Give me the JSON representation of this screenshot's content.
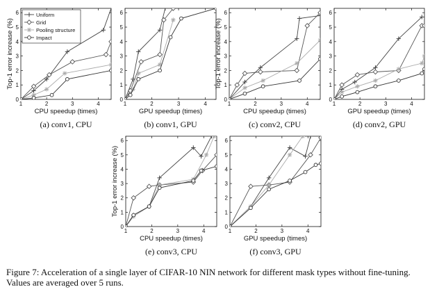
{
  "legend": {
    "entries": [
      {
        "name": "Uniform",
        "color": "#444444",
        "marker": "plus"
      },
      {
        "name": "Grid",
        "color": "#555555",
        "marker": "diamond"
      },
      {
        "name": "Pooling structure",
        "color": "#aaaaaa",
        "marker": "star"
      },
      {
        "name": "Impact",
        "color": "#333333",
        "marker": "circle"
      }
    ]
  },
  "figure_caption": "Figure 7: Acceleration of a single layer of CIFAR-10 NIN network for different mask types without fine-tuning. Values are averaged over 5 runs.",
  "chart_data": [
    {
      "type": "line",
      "caption": "(a) conv1, CPU",
      "xlabel": "CPU speedup (times)",
      "ylabel": "Top-1 error increase (%)",
      "xlim": [
        1,
        4.5
      ],
      "ylim": [
        0,
        6.3
      ],
      "xticks": [
        "1",
        "2",
        "3",
        "4"
      ],
      "yticks": [
        "0",
        "1",
        "2",
        "3",
        "4",
        "5",
        "6"
      ],
      "legend": true,
      "legend_position": "top-left",
      "series": [
        {
          "name": "Uniform",
          "x": [
            1.0,
            1.5,
            2.0,
            2.8,
            4.2,
            4.5
          ],
          "y": [
            0.0,
            0.6,
            1.4,
            3.3,
            4.8,
            6.3
          ]
        },
        {
          "name": "Grid",
          "x": [
            1.0,
            1.5,
            2.1,
            3.0,
            4.3,
            4.5
          ],
          "y": [
            0.0,
            0.9,
            1.7,
            2.6,
            3.1,
            4.0
          ]
        },
        {
          "name": "Pooling structure",
          "x": [
            1.0,
            1.5,
            2.0,
            2.7,
            4.5
          ],
          "y": [
            0.0,
            0.3,
            0.7,
            1.8,
            2.4
          ]
        },
        {
          "name": "Impact",
          "x": [
            1.0,
            1.5,
            2.2,
            2.8,
            4.5
          ],
          "y": [
            0.0,
            0.1,
            0.3,
            1.4,
            2.0
          ]
        }
      ]
    },
    {
      "type": "line",
      "caption": "(b) conv1, GPU",
      "xlabel": "GPU speedup (times)",
      "ylabel": "",
      "xlim": [
        1,
        4.4
      ],
      "ylim": [
        0,
        6.3
      ],
      "xticks": [
        "1",
        "2",
        "3",
        "4"
      ],
      "yticks": [
        "0",
        "1",
        "2",
        "3",
        "4",
        "5",
        "6"
      ],
      "legend": false,
      "series": [
        {
          "name": "Uniform",
          "x": [
            1.0,
            1.3,
            1.5,
            2.3,
            2.5,
            2.8
          ],
          "y": [
            0.0,
            1.4,
            3.3,
            4.8,
            6.3,
            6.3
          ]
        },
        {
          "name": "Grid",
          "x": [
            1.0,
            1.2,
            1.6,
            2.3,
            2.45,
            2.8
          ],
          "y": [
            0.0,
            0.6,
            2.6,
            3.1,
            5.5,
            6.3
          ]
        },
        {
          "name": "Pooling structure",
          "x": [
            1.0,
            1.3,
            1.5,
            2.3,
            2.8
          ],
          "y": [
            0.0,
            0.7,
            1.8,
            2.4,
            5.5
          ]
        },
        {
          "name": "Impact",
          "x": [
            1.0,
            1.2,
            1.5,
            2.3,
            2.7,
            3.1,
            4.4
          ],
          "y": [
            0.0,
            0.3,
            1.4,
            2.0,
            4.3,
            5.6,
            6.3
          ]
        }
      ]
    },
    {
      "type": "line",
      "caption": "(c) conv2, CPU",
      "xlabel": "CPU speedup (times)",
      "ylabel": "Top-1 error increase (%)",
      "xlim": [
        1,
        4.5
      ],
      "ylim": [
        0,
        6.3
      ],
      "xticks": [
        "1",
        "2",
        "3",
        "4"
      ],
      "yticks": [
        "0",
        "1",
        "2",
        "3",
        "4",
        "5",
        "6"
      ],
      "legend": false,
      "series": [
        {
          "name": "Uniform",
          "x": [
            1.0,
            1.6,
            2.2,
            3.6,
            3.7,
            4.5
          ],
          "y": [
            0.0,
            1.2,
            2.2,
            4.2,
            5.6,
            5.8
          ]
        },
        {
          "name": "Grid",
          "x": [
            1.0,
            1.3,
            1.6,
            2.2,
            3.6,
            4.0,
            4.5
          ],
          "y": [
            0.0,
            1.0,
            1.8,
            1.9,
            2.0,
            5.1,
            6.0
          ]
        },
        {
          "name": "Pooling structure",
          "x": [
            1.0,
            1.6,
            2.3,
            3.6,
            4.5
          ],
          "y": [
            0.0,
            0.8,
            1.3,
            2.5,
            4.1
          ]
        },
        {
          "name": "Impact",
          "x": [
            1.0,
            1.6,
            2.3,
            3.7,
            4.5
          ],
          "y": [
            0.0,
            0.4,
            0.9,
            1.3,
            2.8
          ]
        }
      ]
    },
    {
      "type": "line",
      "caption": "(d) conv2, GPU",
      "xlabel": "GPU speedup (times)",
      "ylabel": "",
      "xlim": [
        1,
        4.5
      ],
      "ylim": [
        0,
        6.3
      ],
      "xticks": [
        "1",
        "2",
        "3",
        "4"
      ],
      "yticks": [
        "0",
        "1",
        "2",
        "3",
        "4",
        "5",
        "6"
      ],
      "legend": false,
      "series": [
        {
          "name": "Uniform",
          "x": [
            1.0,
            1.3,
            1.8,
            2.6,
            3.5,
            4.4
          ],
          "y": [
            0.0,
            0.7,
            1.2,
            2.2,
            4.2,
            5.7
          ]
        },
        {
          "name": "Grid",
          "x": [
            1.0,
            1.3,
            1.9,
            2.6,
            3.5,
            4.4,
            4.5
          ],
          "y": [
            0.0,
            1.0,
            1.7,
            1.9,
            2.0,
            5.1,
            5.1
          ]
        },
        {
          "name": "Pooling structure",
          "x": [
            1.0,
            1.3,
            1.9,
            2.6,
            3.5,
            4.4,
            4.5
          ],
          "y": [
            0.0,
            0.5,
            0.9,
            1.3,
            2.1,
            2.5,
            3.0
          ]
        },
        {
          "name": "Impact",
          "x": [
            1.0,
            1.3,
            1.9,
            2.6,
            3.5,
            4.4,
            4.5
          ],
          "y": [
            0.0,
            0.2,
            0.5,
            0.9,
            1.3,
            1.8,
            2.1
          ]
        }
      ]
    },
    {
      "type": "line",
      "caption": "(e) conv3, CPU",
      "xlabel": "CPU speedup (times)",
      "ylabel": "Top-1 error increase (%)",
      "xlim": [
        1,
        4.5
      ],
      "ylim": [
        0,
        6.3
      ],
      "xticks": [
        "1",
        "2",
        "3",
        "4"
      ],
      "yticks": [
        "0",
        "1",
        "2",
        "3",
        "4",
        "5",
        "6"
      ],
      "legend": false,
      "series": [
        {
          "name": "Uniform",
          "x": [
            1.0,
            1.3,
            1.9,
            2.3,
            3.6,
            3.9,
            4.3
          ],
          "y": [
            0.0,
            0.8,
            1.4,
            3.4,
            5.5,
            4.9,
            6.3
          ]
        },
        {
          "name": "Grid",
          "x": [
            1.0,
            1.3,
            1.9,
            2.3,
            3.6,
            3.95,
            4.5
          ],
          "y": [
            0.0,
            2.0,
            2.8,
            2.9,
            3.1,
            3.9,
            5.0
          ]
        },
        {
          "name": "Pooling structure",
          "x": [
            1.0,
            1.3,
            1.9,
            2.3,
            3.6,
            4.1,
            4.4
          ],
          "y": [
            0.0,
            0.7,
            1.4,
            2.9,
            3.3,
            5.0,
            6.3
          ]
        },
        {
          "name": "Impact",
          "x": [
            1.0,
            1.3,
            1.9,
            2.3,
            3.6,
            3.9,
            4.5
          ],
          "y": [
            0.0,
            0.8,
            1.4,
            2.7,
            3.2,
            3.9,
            4.2
          ]
        }
      ]
    },
    {
      "type": "line",
      "caption": "(f) conv3, GPU",
      "xlabel": "GPU speedup (times)",
      "ylabel": "",
      "xlim": [
        1,
        4.5
      ],
      "ylim": [
        0,
        6.3
      ],
      "xticks": [
        "1",
        "2",
        "3",
        "4"
      ],
      "yticks": [
        "0",
        "1",
        "2",
        "3",
        "4",
        "5",
        "6"
      ],
      "legend": false,
      "series": [
        {
          "name": "Uniform",
          "x": [
            1.0,
            1.8,
            2.5,
            3.3,
            3.9,
            4.1
          ],
          "y": [
            0.0,
            1.4,
            3.4,
            5.5,
            4.9,
            6.3
          ]
        },
        {
          "name": "Grid",
          "x": [
            1.0,
            1.8,
            2.5,
            3.3,
            4.1,
            4.5
          ],
          "y": [
            0.0,
            2.8,
            2.9,
            3.1,
            5.0,
            6.2
          ]
        },
        {
          "name": "Pooling structure",
          "x": [
            1.0,
            1.8,
            2.5,
            3.3,
            3.8
          ],
          "y": [
            0.0,
            1.4,
            2.9,
            5.0,
            6.3
          ]
        },
        {
          "name": "Impact",
          "x": [
            1.0,
            1.8,
            2.5,
            3.3,
            3.9,
            4.3,
            4.5
          ],
          "y": [
            0.0,
            1.3,
            2.6,
            3.2,
            3.8,
            4.3,
            4.4
          ]
        }
      ]
    }
  ]
}
